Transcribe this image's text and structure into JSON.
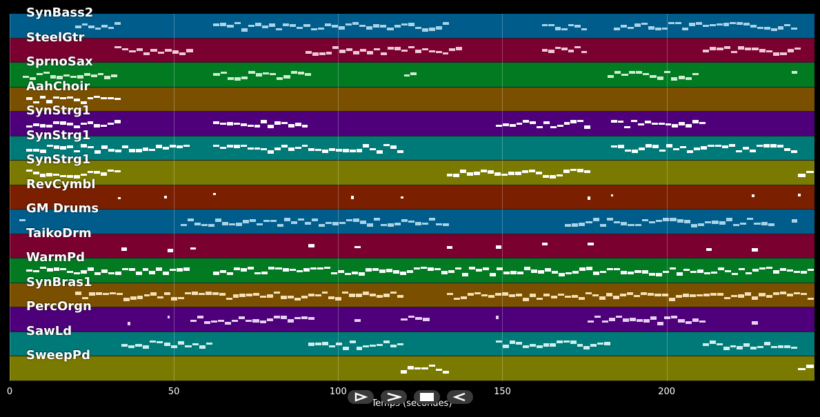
{
  "xlabel": "Temps (secondes)",
  "xaxis": {
    "min": 0,
    "max": 245,
    "ticks": [
      0,
      50,
      100,
      150,
      200
    ]
  },
  "tracks": [
    {
      "name": "SynBass2",
      "color": "#005c8a",
      "note_color": "#a9d3e8",
      "segments": [
        [
          20,
          34
        ],
        [
          62,
          134
        ],
        [
          162,
          176
        ],
        [
          184,
          240
        ]
      ]
    },
    {
      "name": "SteelGtr",
      "color": "#7a0030",
      "note_color": "#f0c8d8",
      "segments": [
        [
          32,
          56
        ],
        [
          90,
          138
        ],
        [
          162,
          176
        ],
        [
          211,
          241
        ]
      ]
    },
    {
      "name": "SprnoSax",
      "color": "#027a22",
      "note_color": "#cfeecf",
      "segments": [
        [
          4,
          33
        ],
        [
          62,
          92
        ],
        [
          120,
          124
        ],
        [
          182,
          210
        ],
        [
          238,
          240
        ]
      ]
    },
    {
      "name": "AahChoir",
      "color": "#7a5000",
      "note_color": "#ffffff",
      "segments": [
        [
          5,
          34
        ]
      ]
    },
    {
      "name": "SynStrg1",
      "color": "#4e007a",
      "note_color": "#ffffff",
      "segments": [
        [
          5,
          34
        ],
        [
          62,
          91
        ],
        [
          148,
          177
        ],
        [
          183,
          212
        ]
      ]
    },
    {
      "name": "SynStrg1",
      "color": "#007a78",
      "note_color": "#ffffff",
      "segments": [
        [
          5,
          55
        ],
        [
          62,
          120
        ],
        [
          183,
          240
        ]
      ]
    },
    {
      "name": "SynStrg1",
      "color": "#7a7a00",
      "note_color": "#ffffff",
      "segments": [
        [
          5,
          34
        ],
        [
          133,
          177
        ],
        [
          240,
          245
        ]
      ]
    },
    {
      "name": "RevCymbl",
      "color": "#7a2000",
      "note_color": "#ffffff",
      "segments": [
        [
          33,
          34
        ],
        [
          47,
          48
        ],
        [
          62,
          63
        ],
        [
          104,
          105
        ],
        [
          119,
          120
        ],
        [
          176,
          177
        ],
        [
          183,
          184
        ],
        [
          226,
          227
        ],
        [
          240,
          241
        ]
      ]
    },
    {
      "name": "GM Drums",
      "color": "#005c8a",
      "note_color": "#a9d3e8",
      "segments": [
        [
          3,
          5
        ],
        [
          52,
          134
        ],
        [
          169,
          233
        ],
        [
          238,
          240
        ]
      ]
    },
    {
      "name": "TaikoDrm",
      "color": "#7a0030",
      "note_color": "#ffffff",
      "segments": [
        [
          34,
          36
        ],
        [
          48,
          50
        ],
        [
          55,
          57
        ],
        [
          91,
          93
        ],
        [
          105,
          107
        ],
        [
          133,
          135
        ],
        [
          148,
          150
        ],
        [
          162,
          164
        ],
        [
          176,
          178
        ],
        [
          212,
          214
        ],
        [
          226,
          228
        ]
      ]
    },
    {
      "name": "WarmPd",
      "color": "#027a22",
      "note_color": "#ffffff",
      "segments": [
        [
          5,
          55
        ],
        [
          62,
          245
        ]
      ]
    },
    {
      "name": "SynBras1",
      "color": "#7a5000",
      "note_color": "#f5e0b8",
      "segments": [
        [
          20,
          120
        ],
        [
          133,
          245
        ]
      ]
    },
    {
      "name": "PercOrgn",
      "color": "#4e007a",
      "note_color": "#e6d0f5",
      "segments": [
        [
          36,
          37
        ],
        [
          48,
          49
        ],
        [
          55,
          93
        ],
        [
          105,
          107
        ],
        [
          119,
          128
        ],
        [
          148,
          149
        ],
        [
          176,
          212
        ],
        [
          226,
          228
        ]
      ]
    },
    {
      "name": "SawLd",
      "color": "#007a78",
      "note_color": "#cfeeee",
      "segments": [
        [
          34,
          62
        ],
        [
          91,
          120
        ],
        [
          148,
          183
        ],
        [
          211,
          240
        ]
      ]
    },
    {
      "name": "SweepPd",
      "color": "#7a7a00",
      "note_color": "#ffffff",
      "segments": [
        [
          119,
          134
        ],
        [
          240,
          245
        ]
      ]
    }
  ],
  "controls": [
    {
      "name": "play-icon"
    },
    {
      "name": "forward-icon"
    },
    {
      "name": "stop-icon"
    },
    {
      "name": "rewind-icon"
    }
  ]
}
